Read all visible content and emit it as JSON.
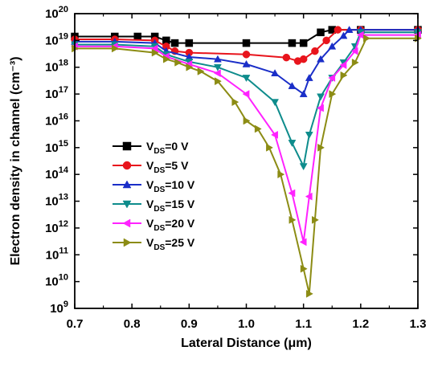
{
  "chart_data": {
    "type": "line",
    "title": "",
    "xlabel": "Lateral Distance (μm)",
    "ylabel": "Electron density in channel (cm⁻³)",
    "xlim": [
      0.7,
      1.3
    ],
    "ylim": [
      1000000000.0,
      1e+20
    ],
    "yscale": "log",
    "x_ticks": [
      "0.7",
      "0.8",
      "0.9",
      "1.0",
      "1.1",
      "1.2",
      "1.3"
    ],
    "y_ticks": [
      {
        "base": "10",
        "exp": "9"
      },
      {
        "base": "10",
        "exp": "10"
      },
      {
        "base": "10",
        "exp": "11"
      },
      {
        "base": "10",
        "exp": "12"
      },
      {
        "base": "10",
        "exp": "13"
      },
      {
        "base": "10",
        "exp": "14"
      },
      {
        "base": "10",
        "exp": "15"
      },
      {
        "base": "10",
        "exp": "16"
      },
      {
        "base": "10",
        "exp": "17"
      },
      {
        "base": "10",
        "exp": "18"
      },
      {
        "base": "10",
        "exp": "19"
      },
      {
        "base": "10",
        "exp": "20"
      }
    ],
    "grid": false,
    "legend_position": "center-left",
    "series": [
      {
        "name": "VDS=0 V",
        "label_main": "V",
        "label_sub": "DS",
        "label_rest": "=0 V",
        "color": "#000000",
        "marker": "square",
        "x": [
          0.7,
          0.77,
          0.81,
          0.84,
          0.86,
          0.875,
          0.9,
          1.0,
          1.08,
          1.1,
          1.13,
          1.15,
          1.2,
          1.3
        ],
        "y": [
          1.4e+19,
          1.4e+19,
          1.4e+19,
          1.4e+19,
          1e+19,
          8e+18,
          8e+18,
          8e+18,
          8e+18,
          8e+18,
          2e+19,
          2.5e+19,
          2.5e+19,
          2.5e+19
        ]
      },
      {
        "name": "VDS=5 V",
        "label_main": "V",
        "label_sub": "DS",
        "label_rest": "=5 V",
        "color": "#e8141c",
        "marker": "circle",
        "x": [
          0.7,
          0.77,
          0.84,
          0.86,
          0.875,
          0.9,
          1.0,
          1.07,
          1.09,
          1.1,
          1.12,
          1.14,
          1.16,
          1.2,
          1.3
        ],
        "y": [
          1.1e+19,
          1.1e+19,
          1e+19,
          6e+18,
          4e+18,
          3.5e+18,
          3e+18,
          2.3e+18,
          1.7e+18,
          2e+18,
          4e+18,
          1e+19,
          2.5e+19,
          2.5e+19,
          2.5e+19
        ]
      },
      {
        "name": "VDS=10 V",
        "label_main": "V",
        "label_sub": "DS",
        "label_rest": "=10 V",
        "color": "#1a2ec8",
        "marker": "triangle-up",
        "x": [
          0.7,
          0.77,
          0.84,
          0.86,
          0.9,
          0.95,
          1.0,
          1.05,
          1.08,
          1.1,
          1.11,
          1.13,
          1.15,
          1.17,
          1.18,
          1.2,
          1.3
        ],
        "y": [
          9e+18,
          9e+18,
          8e+18,
          4e+18,
          2.4e+18,
          2e+18,
          1.3e+18,
          6e+17,
          2e+17,
          1e+17,
          4e+17,
          2e+18,
          6e+18,
          1.5e+19,
          2.5e+19,
          2.5e+19,
          2.5e+19
        ]
      },
      {
        "name": "VDS=15 V",
        "label_main": "V",
        "label_sub": "DS",
        "label_rest": "=15 V",
        "color": "#0e8c8c",
        "marker": "triangle-down",
        "x": [
          0.7,
          0.77,
          0.84,
          0.86,
          0.9,
          0.95,
          1.0,
          1.05,
          1.08,
          1.1,
          1.11,
          1.13,
          1.15,
          1.17,
          1.19,
          1.2,
          1.3
        ],
        "y": [
          7e+18,
          7e+18,
          6e+18,
          3e+18,
          1.6e+18,
          1e+18,
          4e+17,
          5e+16,
          1500000000000000.0,
          200000000000000.0,
          3000000000000000.0,
          8e+16,
          4e+17,
          1.5e+18,
          6e+18,
          2e+19,
          2e+19
        ]
      },
      {
        "name": "VDS=20 V",
        "label_main": "V",
        "label_sub": "DS",
        "label_rest": "=20 V",
        "color": "#ff22ff",
        "marker": "triangle-left",
        "x": [
          0.7,
          0.77,
          0.84,
          0.86,
          0.9,
          0.95,
          1.0,
          1.05,
          1.08,
          1.1,
          1.11,
          1.13,
          1.15,
          1.17,
          1.19,
          1.2,
          1.3
        ],
        "y": [
          6e+18,
          6e+18,
          5e+18,
          2.5e+18,
          1.3e+18,
          6e+17,
          1e+17,
          3000000000000000.0,
          20000000000000.0,
          300000000000.0,
          15000000000000.0,
          3e+16,
          4e+17,
          1.2e+18,
          4e+18,
          1.6e+19,
          1.6e+19
        ]
      },
      {
        "name": "VDS=25 V",
        "label_main": "V",
        "label_sub": "DS",
        "label_rest": "=25 V",
        "color": "#8c8c14",
        "marker": "triangle-right",
        "x": [
          0.7,
          0.77,
          0.84,
          0.86,
          0.88,
          0.9,
          0.92,
          0.95,
          0.98,
          1.0,
          1.02,
          1.04,
          1.06,
          1.08,
          1.1,
          1.11,
          1.12,
          1.13,
          1.15,
          1.17,
          1.19,
          1.21,
          1.3
        ],
        "y": [
          5e+18,
          5e+18,
          3.5e+18,
          2e+18,
          1.5e+18,
          1e+18,
          7e+17,
          3e+17,
          5e+16,
          1e+16,
          5000000000000000.0,
          1000000000000000.0,
          100000000000000.0,
          2000000000000.0,
          30000000000.0,
          3500000000.0,
          2000000000000.0,
          1000000000000000.0,
          1e+17,
          5e+17,
          1.5e+18,
          1.2e+19,
          1.2e+19
        ]
      }
    ]
  }
}
